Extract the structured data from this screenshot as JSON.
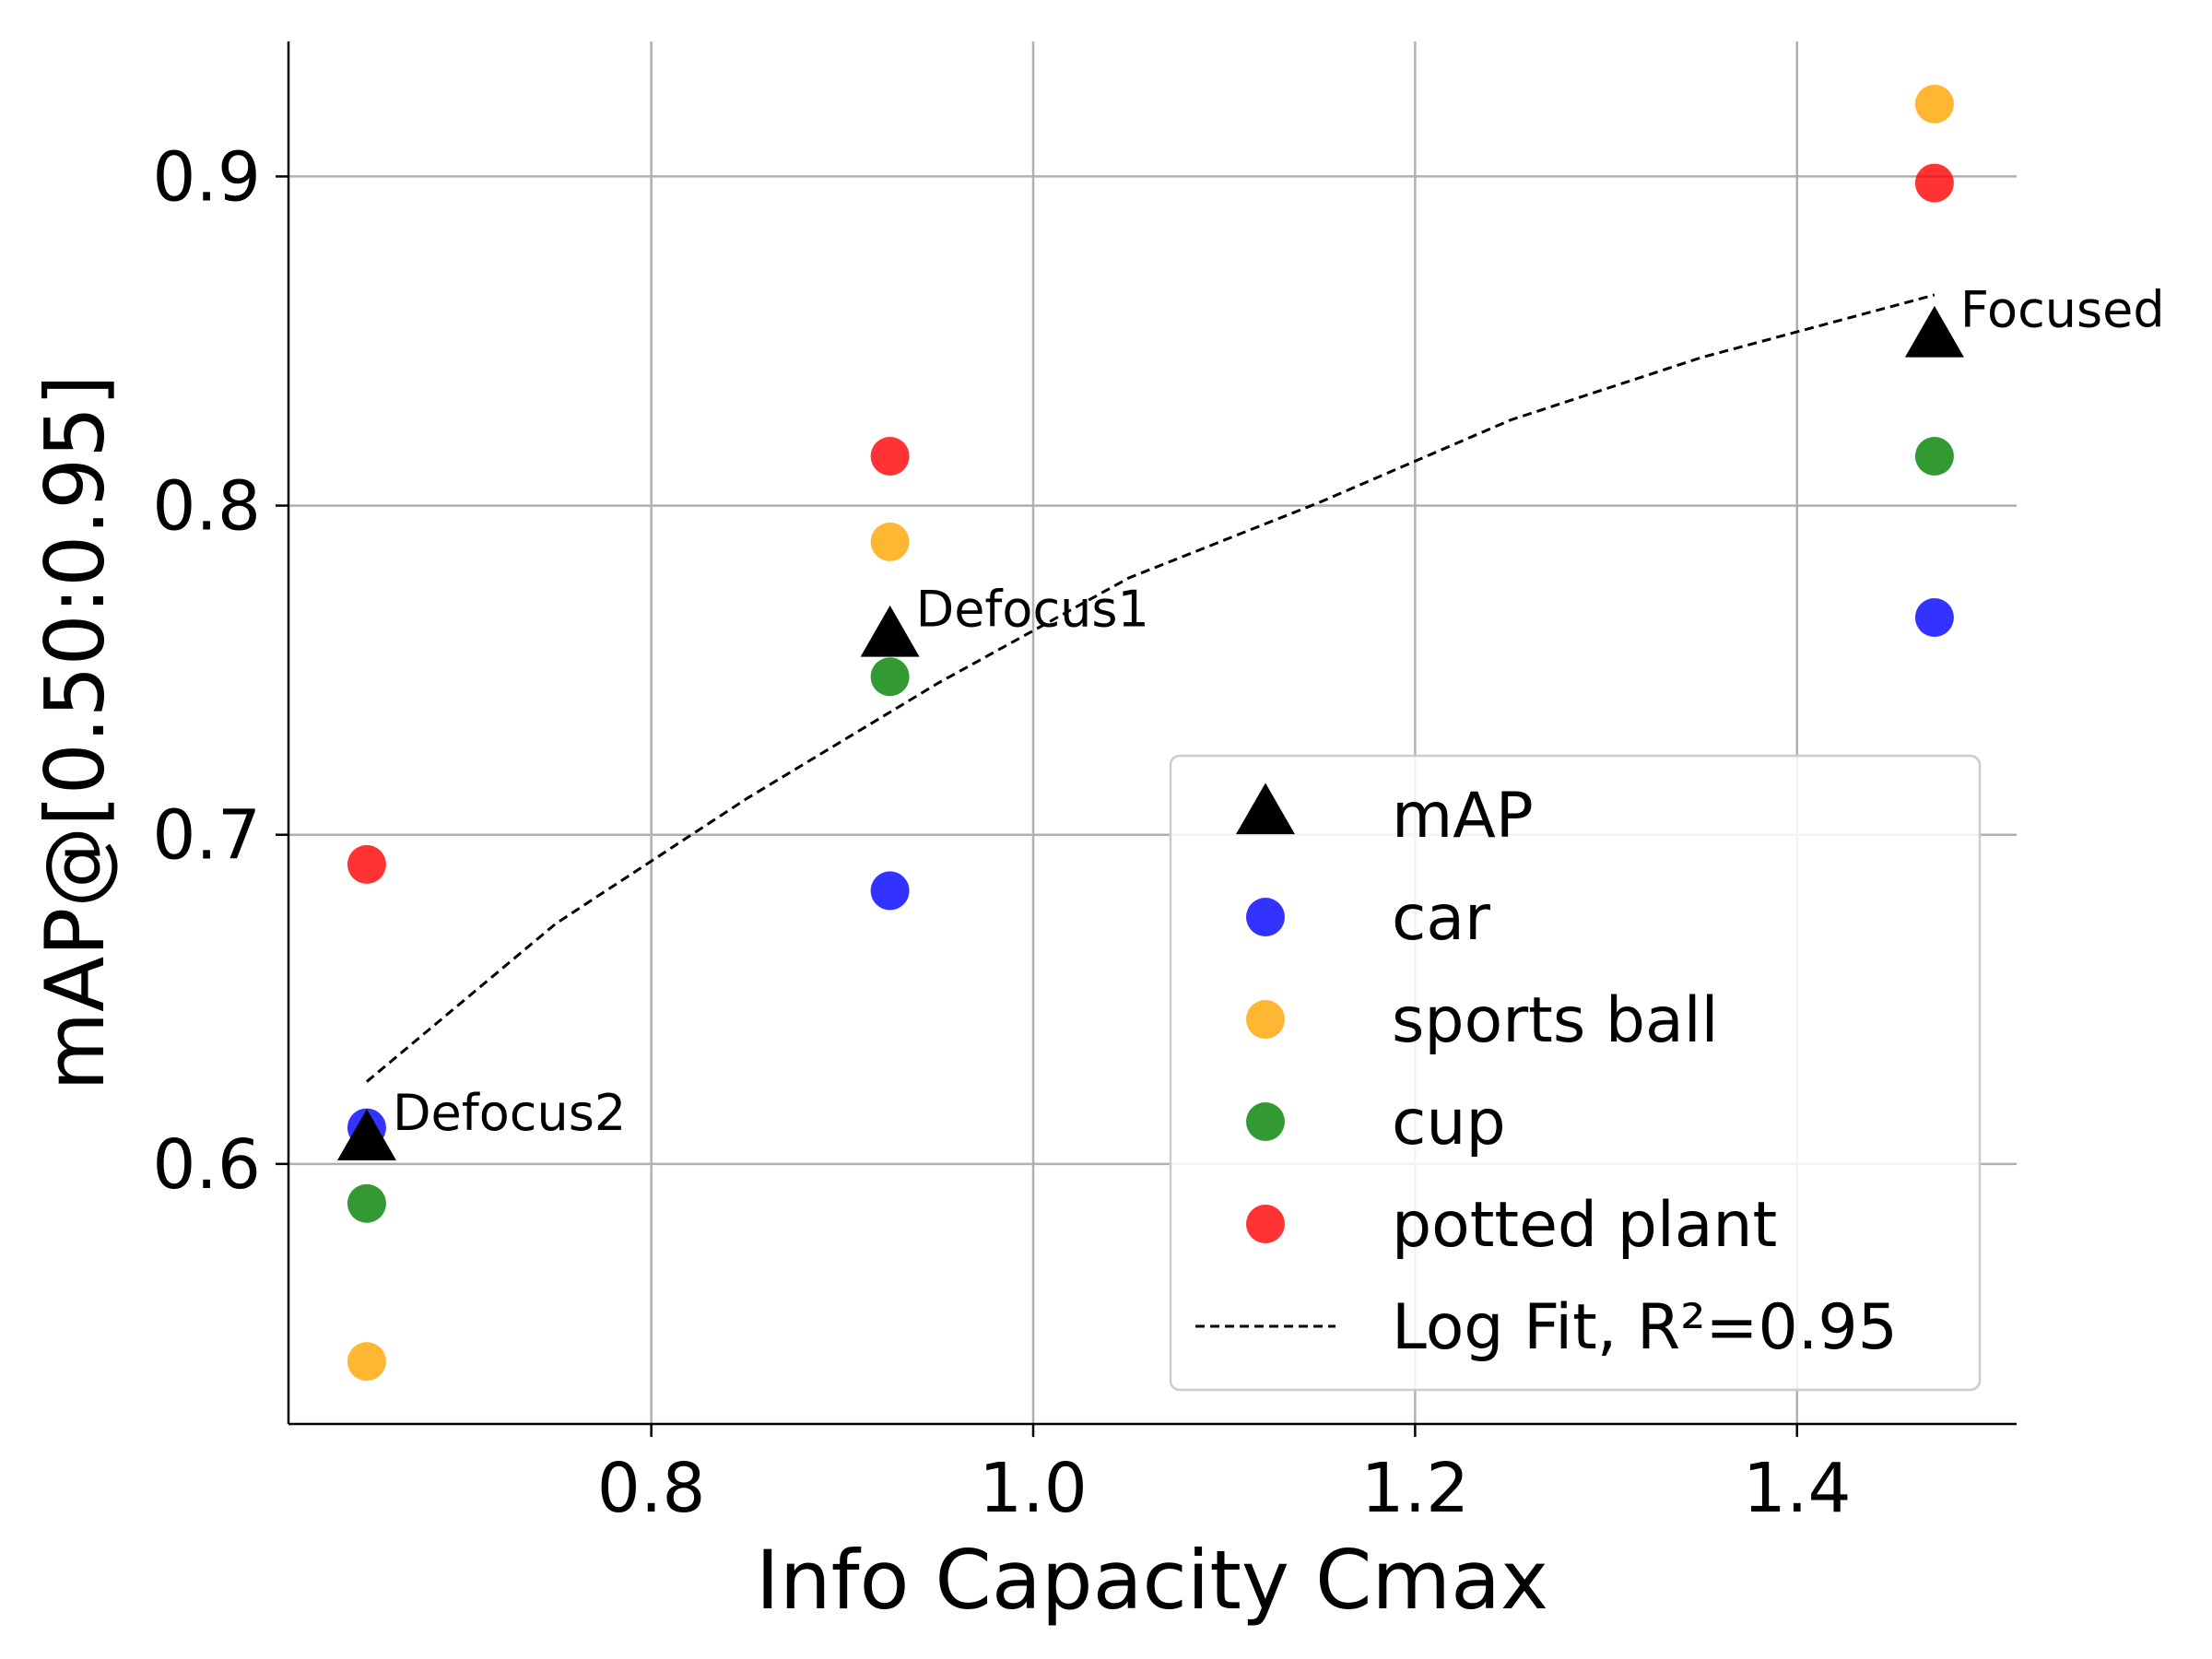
{
  "chart_data": {
    "type": "scatter",
    "xlabel": "Info Capacity Cmax",
    "ylabel": "mAP@[0.50:0.95]",
    "xlim": [
      0.61,
      1.515
    ],
    "ylim": [
      0.521,
      0.941
    ],
    "xticks": [
      0.8,
      1.0,
      1.2,
      1.4
    ],
    "xtick_labels": [
      "0.8",
      "1.0",
      "1.2",
      "1.4"
    ],
    "yticks": [
      0.6,
      0.7,
      0.8,
      0.9
    ],
    "ytick_labels": [
      "0.6",
      "0.7",
      "0.8",
      "0.9"
    ],
    "grid": true,
    "legend_position": "lower-right",
    "x": [
      0.651,
      0.925,
      1.472
    ],
    "series": [
      {
        "name": "mAP",
        "marker": "triangle",
        "color": "#000000",
        "values": [
          0.607,
          0.76,
          0.851
        ]
      },
      {
        "name": "car",
        "marker": "circle",
        "color": "#0000ff",
        "values": [
          0.611,
          0.683,
          0.766
        ]
      },
      {
        "name": "sports ball",
        "marker": "circle",
        "color": "#ffa500",
        "values": [
          0.54,
          0.789,
          0.922
        ]
      },
      {
        "name": "cup",
        "marker": "circle",
        "color": "#008000",
        "values": [
          0.588,
          0.748,
          0.815
        ]
      },
      {
        "name": "potted plant",
        "marker": "circle",
        "color": "#ff0000",
        "values": [
          0.691,
          0.815,
          0.898
        ]
      }
    ],
    "fit": {
      "name": "Log Fit, R²=0.95",
      "style": "dashed",
      "color": "#000000",
      "x": [
        0.651,
        0.75,
        0.85,
        0.95,
        1.05,
        1.15,
        1.25,
        1.35,
        1.472
      ],
      "y": [
        0.625,
        0.673,
        0.711,
        0.746,
        0.778,
        0.801,
        0.826,
        0.845,
        0.864
      ]
    },
    "annotations": [
      {
        "text": "Defocus2",
        "x": 0.651,
        "y": 0.607
      },
      {
        "text": "Defocus1",
        "x": 0.925,
        "y": 0.76
      },
      {
        "text": "Focused",
        "x": 1.472,
        "y": 0.851
      }
    ]
  }
}
